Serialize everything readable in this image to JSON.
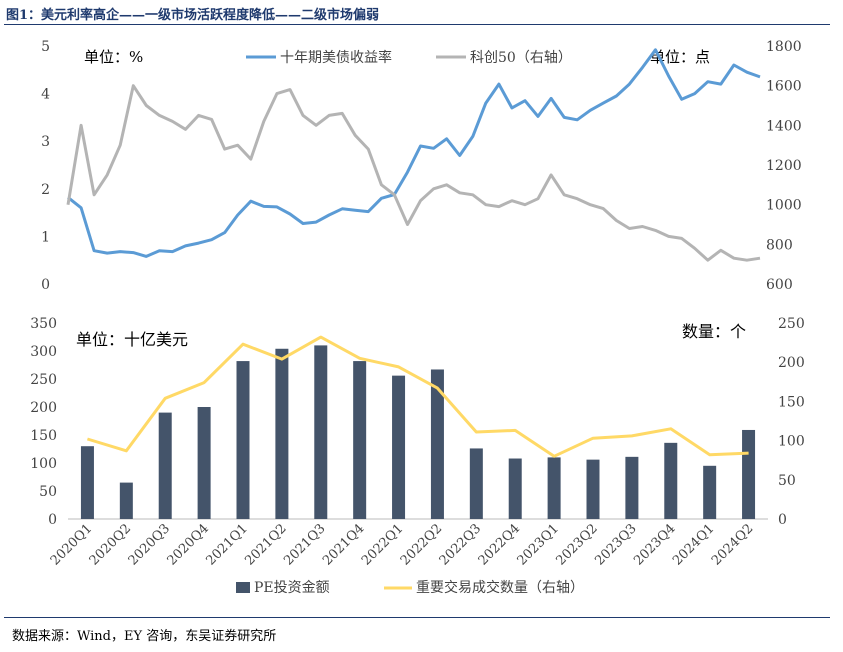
{
  "figure": {
    "title": "图1：美元利率高企——一级市场活跃程度降低——二级市场偏弱",
    "source": "数据来源：Wind，EY 咨询，东吴证券研究所"
  },
  "colors": {
    "title": "#1f3a6e",
    "yield_line": "#5b9bd5",
    "star50_line": "#b4b4b4",
    "bars": "#44546a",
    "deals_line": "#ffd966"
  },
  "chart_data": [
    {
      "type": "line",
      "unit_left": "单位：%",
      "unit_right": "单位：点",
      "ylim_left": [
        0,
        5
      ],
      "yticks_left": [
        "0",
        "1",
        "2",
        "3",
        "4",
        "5"
      ],
      "ylim_right": [
        600,
        1800
      ],
      "yticks_right": [
        "600",
        "800",
        "1000",
        "1200",
        "1400",
        "1600",
        "1800"
      ],
      "x_range": [
        "2020-01",
        "2024-06"
      ],
      "legend_position": "top-center",
      "series": [
        {
          "name": "十年期美债收益率",
          "axis": "left",
          "x": [
            "2020-01",
            "2020-02",
            "2020-03",
            "2020-04",
            "2020-05",
            "2020-06",
            "2020-07",
            "2020-08",
            "2020-09",
            "2020-10",
            "2020-11",
            "2020-12",
            "2021-01",
            "2021-02",
            "2021-03",
            "2021-04",
            "2021-05",
            "2021-06",
            "2021-07",
            "2021-08",
            "2021-09",
            "2021-10",
            "2021-11",
            "2021-12",
            "2022-01",
            "2022-02",
            "2022-03",
            "2022-04",
            "2022-05",
            "2022-06",
            "2022-07",
            "2022-08",
            "2022-09",
            "2022-10",
            "2022-11",
            "2022-12",
            "2023-01",
            "2023-02",
            "2023-03",
            "2023-04",
            "2023-05",
            "2023-06",
            "2023-07",
            "2023-08",
            "2023-09",
            "2023-10",
            "2023-11",
            "2023-12",
            "2024-01",
            "2024-02",
            "2024-03",
            "2024-04",
            "2024-05",
            "2024-06"
          ],
          "values": [
            1.82,
            1.6,
            0.7,
            0.65,
            0.68,
            0.66,
            0.58,
            0.7,
            0.68,
            0.8,
            0.86,
            0.93,
            1.08,
            1.45,
            1.74,
            1.63,
            1.62,
            1.47,
            1.27,
            1.3,
            1.45,
            1.58,
            1.55,
            1.52,
            1.8,
            1.88,
            2.35,
            2.9,
            2.85,
            3.05,
            2.7,
            3.1,
            3.8,
            4.2,
            3.7,
            3.85,
            3.52,
            3.9,
            3.5,
            3.45,
            3.65,
            3.8,
            3.95,
            4.2,
            4.55,
            4.92,
            4.37,
            3.88,
            4.0,
            4.25,
            4.2,
            4.6,
            4.45,
            4.35
          ]
        },
        {
          "name": "科创50（右轴）",
          "axis": "right",
          "x": [
            "2020-01",
            "2020-02",
            "2020-03",
            "2020-04",
            "2020-05",
            "2020-06",
            "2020-07",
            "2020-08",
            "2020-09",
            "2020-10",
            "2020-11",
            "2020-12",
            "2021-01",
            "2021-02",
            "2021-03",
            "2021-04",
            "2021-05",
            "2021-06",
            "2021-07",
            "2021-08",
            "2021-09",
            "2021-10",
            "2021-11",
            "2021-12",
            "2022-01",
            "2022-02",
            "2022-03",
            "2022-04",
            "2022-05",
            "2022-06",
            "2022-07",
            "2022-08",
            "2022-09",
            "2022-10",
            "2022-11",
            "2022-12",
            "2023-01",
            "2023-02",
            "2023-03",
            "2023-04",
            "2023-05",
            "2023-06",
            "2023-07",
            "2023-08",
            "2023-09",
            "2023-10",
            "2023-11",
            "2023-12",
            "2024-01",
            "2024-02",
            "2024-03",
            "2024-04",
            "2024-05",
            "2024-06"
          ],
          "values": [
            1000,
            1400,
            1050,
            1150,
            1300,
            1600,
            1500,
            1450,
            1420,
            1380,
            1450,
            1430,
            1280,
            1300,
            1230,
            1420,
            1560,
            1580,
            1450,
            1400,
            1450,
            1460,
            1350,
            1280,
            1100,
            1050,
            900,
            1020,
            1080,
            1100,
            1060,
            1050,
            1000,
            990,
            1020,
            1000,
            1030,
            1150,
            1050,
            1030,
            1000,
            980,
            920,
            880,
            890,
            870,
            840,
            830,
            780,
            720,
            770,
            730,
            720,
            730
          ]
        }
      ]
    },
    {
      "type": "bar",
      "unit_left": "单位：十亿美元",
      "unit_right": "数量：个",
      "categories": [
        "2020Q1",
        "2020Q2",
        "2020Q3",
        "2020Q4",
        "2021Q1",
        "2021Q2",
        "2021Q3",
        "2021Q4",
        "2022Q1",
        "2022Q2",
        "2022Q3",
        "2022Q4",
        "2023Q1",
        "2023Q2",
        "2023Q3",
        "2023Q4",
        "2024Q1",
        "2024Q2"
      ],
      "ylim_left": [
        0,
        350
      ],
      "yticks_left": [
        "0",
        "50",
        "100",
        "150",
        "200",
        "250",
        "300",
        "350"
      ],
      "ylim_right": [
        0,
        250
      ],
      "yticks_right": [
        "0",
        "50",
        "100",
        "150",
        "200",
        "250"
      ],
      "legend_position": "bottom",
      "series": [
        {
          "name": "PE投资金额",
          "axis": "left",
          "type": "bar",
          "values": [
            130,
            65,
            190,
            200,
            282,
            304,
            310,
            282,
            256,
            267,
            126,
            108,
            110,
            106,
            111,
            136,
            95,
            159
          ]
        },
        {
          "name": "重要交易成交数量（右轴）",
          "axis": "right",
          "type": "line",
          "values": [
            102,
            87,
            154,
            174,
            223,
            204,
            232,
            205,
            194,
            167,
            111,
            113,
            80,
            103,
            106,
            115,
            82,
            84
          ]
        }
      ]
    }
  ]
}
